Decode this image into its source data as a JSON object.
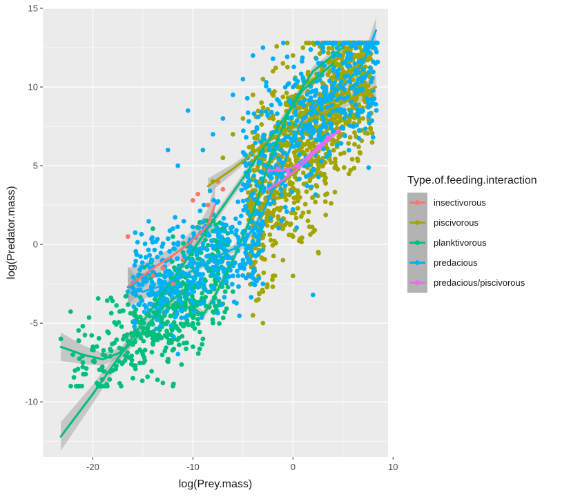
{
  "chart_data": {
    "type": "scatter",
    "title": "",
    "xlabel": "log(Prey.mass)",
    "ylabel": "log(Predator.mass)",
    "xlim": [
      -25,
      9.5
    ],
    "ylim": [
      -13.5,
      15.0
    ],
    "x_ticks": [
      -20,
      -10,
      0,
      10
    ],
    "y_ticks": [
      -10,
      -5,
      0,
      5,
      10,
      15
    ],
    "x_tick_labels": [
      "-20",
      "-10",
      "0",
      "10"
    ],
    "y_tick_labels": [
      "-10",
      "-5",
      "0",
      "5",
      "10",
      "15"
    ],
    "grid": true,
    "background": "#ebebeb",
    "smoothing": "loess with gray confidence band",
    "legend": {
      "title": "Type.of.feeding.interaction",
      "placement": "right",
      "entries": [
        {
          "name": "insectivorous",
          "color": "#F8766D"
        },
        {
          "name": "piscivorous",
          "color": "#A3A500"
        },
        {
          "name": "planktivorous",
          "color": "#00BF7D"
        },
        {
          "name": "predacious",
          "color": "#00B0F6"
        },
        {
          "name": "predacious/piscivorous",
          "color": "#E76BF3"
        }
      ]
    },
    "series": [
      {
        "name": "insectivorous",
        "color": "#F8766D",
        "points": [
          [
            -16.5,
            0.5
          ],
          [
            -14,
            -2
          ],
          [
            -13,
            -1.5
          ],
          [
            -12,
            -2.5
          ],
          [
            -11,
            -1
          ],
          [
            -10,
            2.8
          ],
          [
            -9.5,
            3.2
          ],
          [
            -8.5,
            2.5
          ],
          [
            -7.5,
            4
          ],
          [
            -7,
            3.5
          ]
        ],
        "smooth": [
          [
            -16.5,
            -2.7
          ],
          [
            -15,
            -2
          ],
          [
            -13.5,
            -1.3
          ],
          [
            -12,
            -0.7
          ],
          [
            -10.5,
            0
          ],
          [
            -9,
            0.9
          ],
          [
            -8.5,
            1.3
          ],
          [
            -7.8,
            2.5
          ]
        ],
        "band_halfwidth": [
          1.2,
          0.8,
          0.6,
          0.5,
          0.6,
          0.8,
          1.0,
          1.4
        ]
      },
      {
        "name": "piscivorous",
        "color": "#A3A500",
        "cloud": {
          "x": [
            -5,
            8.5
          ],
          "y": [
            -5,
            12.8
          ],
          "note": "dense cloud along diagonal"
        },
        "points": [
          [
            -8,
            4
          ],
          [
            -7,
            5.5
          ],
          [
            -6,
            7
          ],
          [
            -5,
            8
          ],
          [
            -4,
            9.5
          ],
          [
            -3,
            10.5
          ],
          [
            -2,
            11
          ],
          [
            -1,
            11.5
          ],
          [
            0,
            12
          ],
          [
            1,
            12.5
          ],
          [
            2,
            12.8
          ],
          [
            3,
            12.5
          ],
          [
            5,
            12
          ],
          [
            7,
            11
          ],
          [
            8,
            12.5
          ],
          [
            -4,
            6
          ],
          [
            -3,
            4
          ],
          [
            -2,
            2
          ],
          [
            -1,
            1
          ],
          [
            0,
            0.5
          ],
          [
            1,
            2
          ],
          [
            2,
            3
          ],
          [
            3,
            5
          ],
          [
            5,
            7
          ],
          [
            7,
            8
          ],
          [
            -2,
            -2
          ],
          [
            -3,
            -3
          ],
          [
            -4,
            -4.5
          ],
          [
            -3,
            -5
          ],
          [
            0,
            -2
          ],
          [
            -1,
            -1
          ]
        ],
        "smooth": [
          [
            -8.5,
            3.7
          ],
          [
            -6,
            4.8
          ],
          [
            -4,
            5.8
          ],
          [
            -2,
            6.8
          ],
          [
            0,
            7.4
          ],
          [
            2,
            8
          ],
          [
            4,
            8.7
          ],
          [
            6,
            9.3
          ],
          [
            8.3,
            10
          ]
        ],
        "band_halfwidth": [
          0.5,
          0.3,
          0.2,
          0.2,
          0.2,
          0.2,
          0.3,
          0.4,
          0.8
        ]
      },
      {
        "name": "planktivorous",
        "color": "#00BF7D",
        "cloud": {
          "x": [
            -23.5,
            -5
          ],
          "y": [
            -9,
            1.5
          ],
          "note": "cluster at lower left"
        },
        "points": [
          [
            -23.2,
            -6
          ],
          [
            -22,
            -7
          ],
          [
            -21,
            -7.5
          ],
          [
            -20,
            -6.5
          ],
          [
            -19,
            -7
          ],
          [
            -18,
            -8
          ],
          [
            -17,
            -7.5
          ],
          [
            -16,
            -8.5
          ],
          [
            -15,
            -7
          ],
          [
            -14,
            -6
          ],
          [
            -13,
            -5
          ],
          [
            -12,
            -4
          ],
          [
            -11,
            -3
          ],
          [
            -10,
            -5
          ],
          [
            -9,
            -6
          ],
          [
            -13,
            -8.8
          ],
          [
            -12,
            -9
          ],
          [
            -10,
            -6.5
          ],
          [
            -8,
            -5
          ],
          [
            -6,
            -3
          ],
          [
            -14,
            1
          ],
          [
            -12,
            0.5
          ],
          [
            -11,
            -0.5
          ]
        ],
        "smooth_lines": [
          [
            [
              -23.2,
              -6.5
            ],
            [
              -21,
              -7
            ],
            [
              -19,
              -7.3
            ],
            [
              -17,
              -6.8
            ],
            [
              -15,
              -5.5
            ],
            [
              -13,
              -4
            ],
            [
              -11,
              -3
            ],
            [
              -10,
              -4
            ],
            [
              -9,
              -4.5
            ],
            [
              -8,
              -3.5
            ],
            [
              -6,
              -1
            ],
            [
              -4,
              2
            ],
            [
              -2,
              6
            ],
            [
              0,
              9
            ],
            [
              2,
              11
            ],
            [
              5,
              12.5
            ]
          ],
          [
            [
              -23.2,
              -12.2
            ],
            [
              -20,
              -9.5
            ],
            [
              -17,
              -6.8
            ],
            [
              -14,
              -4
            ],
            [
              -11,
              -1.3
            ],
            [
              -8,
              1.5
            ],
            [
              -5,
              4.2
            ],
            [
              -2,
              7
            ],
            [
              1,
              9.8
            ],
            [
              4,
              11.5
            ]
          ]
        ],
        "band_halfwidth": [
          0.9,
          0.6,
          0.4,
          0.3,
          0.3,
          0.3,
          0.3,
          0.3,
          0.3,
          0.3,
          0.3,
          0.3,
          0.3,
          0.3,
          0.3,
          0.3
        ]
      },
      {
        "name": "predacious",
        "color": "#00B0F6",
        "cloud": {
          "x": [
            -16,
            8.5
          ],
          "y": [
            -9,
            12.8
          ],
          "note": "wide spread cloud"
        },
        "points": [
          [
            -16.5,
            -3
          ],
          [
            -15,
            -2
          ],
          [
            -13,
            -1
          ],
          [
            -12,
            1
          ],
          [
            -11,
            0.5
          ],
          [
            -10.5,
            -2
          ],
          [
            -10,
            -3
          ],
          [
            -9,
            -2.5
          ],
          [
            -8,
            -1
          ],
          [
            -7,
            -1.5
          ],
          [
            -6,
            -2
          ],
          [
            -5,
            -1
          ],
          [
            -4,
            -1.8
          ],
          [
            -3,
            -2.5
          ],
          [
            -10.5,
            8.5
          ],
          [
            -9,
            6
          ],
          [
            -8,
            7
          ],
          [
            -7,
            8
          ],
          [
            -6,
            9.5
          ],
          [
            -5,
            10.5
          ],
          [
            -4,
            12
          ],
          [
            -3,
            12.5
          ],
          [
            -2,
            11.8
          ],
          [
            0,
            10
          ],
          [
            1,
            8
          ],
          [
            2,
            9
          ],
          [
            3,
            12.5
          ],
          [
            4,
            12.8
          ],
          [
            5,
            11.5
          ],
          [
            6,
            10
          ],
          [
            7,
            8.5
          ],
          [
            8,
            6.8
          ],
          [
            2,
            -3.2
          ],
          [
            -11.5,
            5
          ],
          [
            -12.5,
            6
          ]
        ],
        "smooth": [
          [
            -16.5,
            -2.7
          ],
          [
            -15,
            -3
          ],
          [
            -13,
            -2.6
          ],
          [
            -11,
            -2
          ],
          [
            -9,
            -1.3
          ],
          [
            -7,
            -0.6
          ],
          [
            -5,
            0
          ],
          [
            -3,
            2
          ],
          [
            -1,
            5
          ],
          [
            1,
            8
          ],
          [
            3,
            9.2
          ],
          [
            5,
            10
          ],
          [
            7,
            11.5
          ],
          [
            8.3,
            13.6
          ]
        ],
        "band_halfwidth": [
          1.3,
          0.5,
          0.3,
          0.2,
          0.2,
          0.2,
          0.3,
          0.3,
          0.3,
          0.3,
          0.3,
          0.3,
          0.4,
          0.8
        ]
      },
      {
        "name": "predacious/piscivorous",
        "color": "#E76BF3",
        "points": [
          [
            -2.5,
            4.7
          ],
          [
            -1.5,
            4.8
          ],
          [
            -0.5,
            4.6
          ],
          [
            0.5,
            5
          ],
          [
            1.5,
            5.5
          ],
          [
            2.5,
            6.2
          ],
          [
            3.5,
            6.8
          ],
          [
            4.5,
            7.2
          ]
        ],
        "smooth_lines": [
          [
            [
              -2.5,
              4.7
            ],
            [
              -1,
              4.7
            ],
            [
              0,
              4.9
            ],
            [
              1,
              5.3
            ],
            [
              2,
              5.9
            ],
            [
              3,
              6.5
            ],
            [
              4,
              7
            ]
          ],
          [
            [
              -2.5,
              3.5
            ],
            [
              -1,
              4.1
            ],
            [
              0.5,
              4.8
            ],
            [
              2,
              5.7
            ],
            [
              3.5,
              6.6
            ],
            [
              4.5,
              7.2
            ]
          ]
        ],
        "band_halfwidth": [
          0.3,
          0.2,
          0.2,
          0.2,
          0.2,
          0.2,
          0.3
        ]
      }
    ]
  }
}
